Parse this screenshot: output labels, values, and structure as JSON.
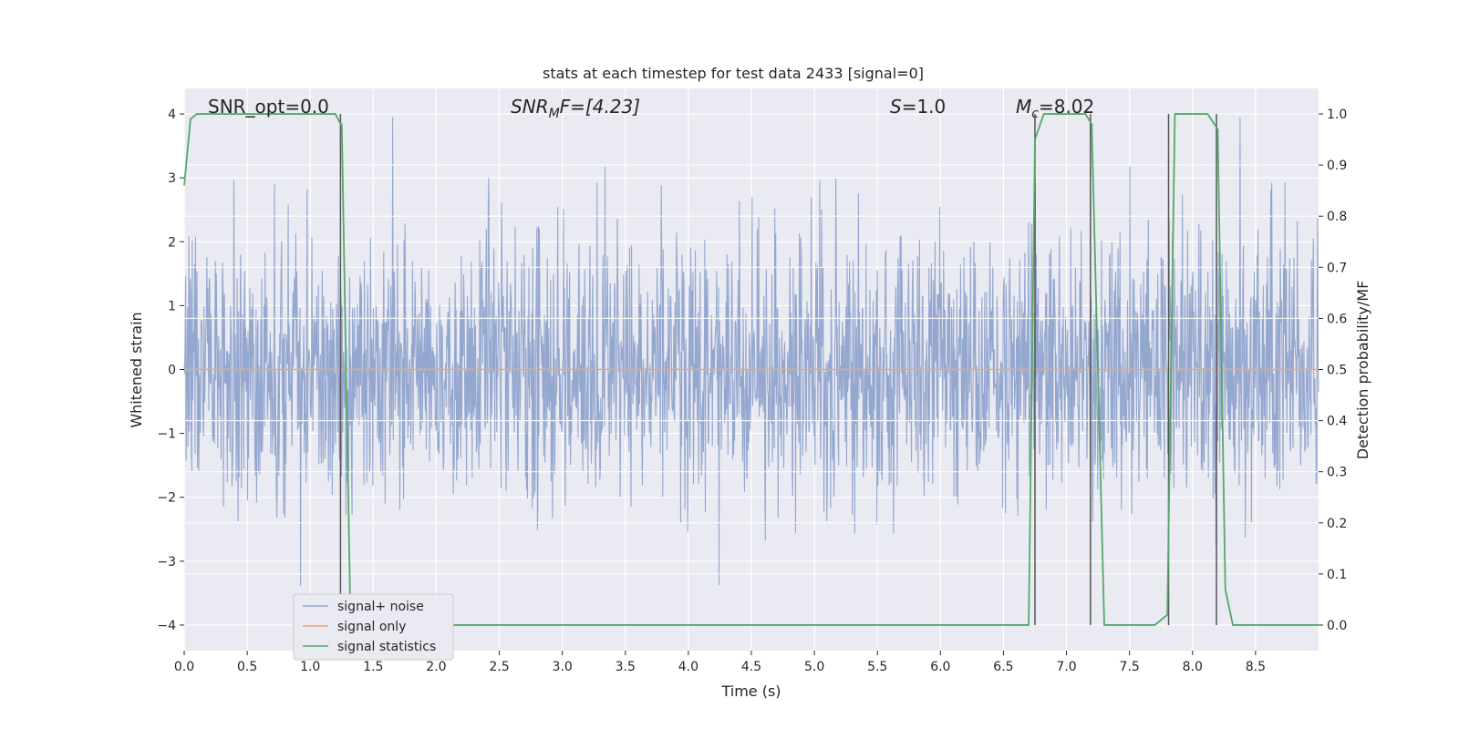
{
  "chart_data": {
    "type": "line",
    "title": "stats at each timestep for test data 2433 [signal=0]",
    "xlabel": "Time (s)",
    "ylabel_left": "Whitened strain",
    "ylabel_right": "Detection probability/MF",
    "xlim": [
      0.0,
      9.0
    ],
    "ylim_left": [
      -4.4,
      4.4
    ],
    "ylim_right": [
      -0.05,
      1.05
    ],
    "x_ticks": [
      "0.0",
      "0.5",
      "1.0",
      "1.5",
      "2.0",
      "2.5",
      "3.0",
      "3.5",
      "4.0",
      "4.5",
      "5.0",
      "5.5",
      "6.0",
      "6.5",
      "7.0",
      "7.5",
      "8.0",
      "8.5"
    ],
    "y_left_ticks": [
      "4",
      "3",
      "2",
      "1",
      "0",
      "−1",
      "−2",
      "−3",
      "−4"
    ],
    "y_right_ticks": [
      "1.0",
      "0.9",
      "0.8",
      "0.7",
      "0.6",
      "0.5",
      "0.4",
      "0.3",
      "0.2",
      "0.1",
      "0.0"
    ],
    "grid": true,
    "legend_position": "lower-left",
    "annotations": {
      "snr_opt": "SNR_opt=0.0",
      "snr_mf_main": "SNR",
      "snr_mf_sub": "M",
      "snr_mf_rest": "F=[4.23]",
      "s_main": "S",
      "s_rest": "=1.0",
      "mc_main": "M",
      "mc_sub": "c",
      "mc_rest": "=8.02"
    },
    "series": [
      {
        "name": "signal+ noise",
        "color": "#8fa3cc",
        "description_values": "whitened noise, approx. amplitude within [-3.7, 4.0]",
        "amplitude_envelope": {
          "typical_abs_max": 2.5,
          "peak_max": 4.0,
          "peak_min": -3.7
        }
      },
      {
        "name": "signal only",
        "color": "#e8a37d",
        "x": [
          0.0,
          9.0
        ],
        "y": [
          0.0,
          0.0
        ]
      },
      {
        "name": "signal statistics",
        "color": "#55a868",
        "x": [
          0.0,
          0.05,
          0.1,
          0.2,
          1.2,
          1.24,
          1.25,
          1.32,
          1.4,
          6.7,
          6.75,
          6.82,
          7.15,
          7.2,
          7.3,
          7.35,
          7.7,
          7.8,
          7.86,
          7.92,
          8.12,
          8.2,
          8.26,
          8.32,
          9.0
        ],
        "y": [
          0.86,
          0.99,
          1.0,
          1.0,
          1.0,
          0.98,
          0.98,
          0.0,
          0.0,
          0.0,
          0.95,
          1.0,
          1.0,
          0.98,
          0.0,
          0.0,
          0.0,
          0.02,
          1.0,
          1.0,
          1.0,
          0.97,
          0.07,
          0.0,
          0.0
        ]
      }
    ],
    "vertical_markers_x": [
      1.24,
      6.75,
      7.19,
      7.81,
      8.19
    ]
  },
  "colors": {
    "plot_bg": "#eaeaf2",
    "grid": "#ffffff",
    "marker_line": "#555555"
  }
}
